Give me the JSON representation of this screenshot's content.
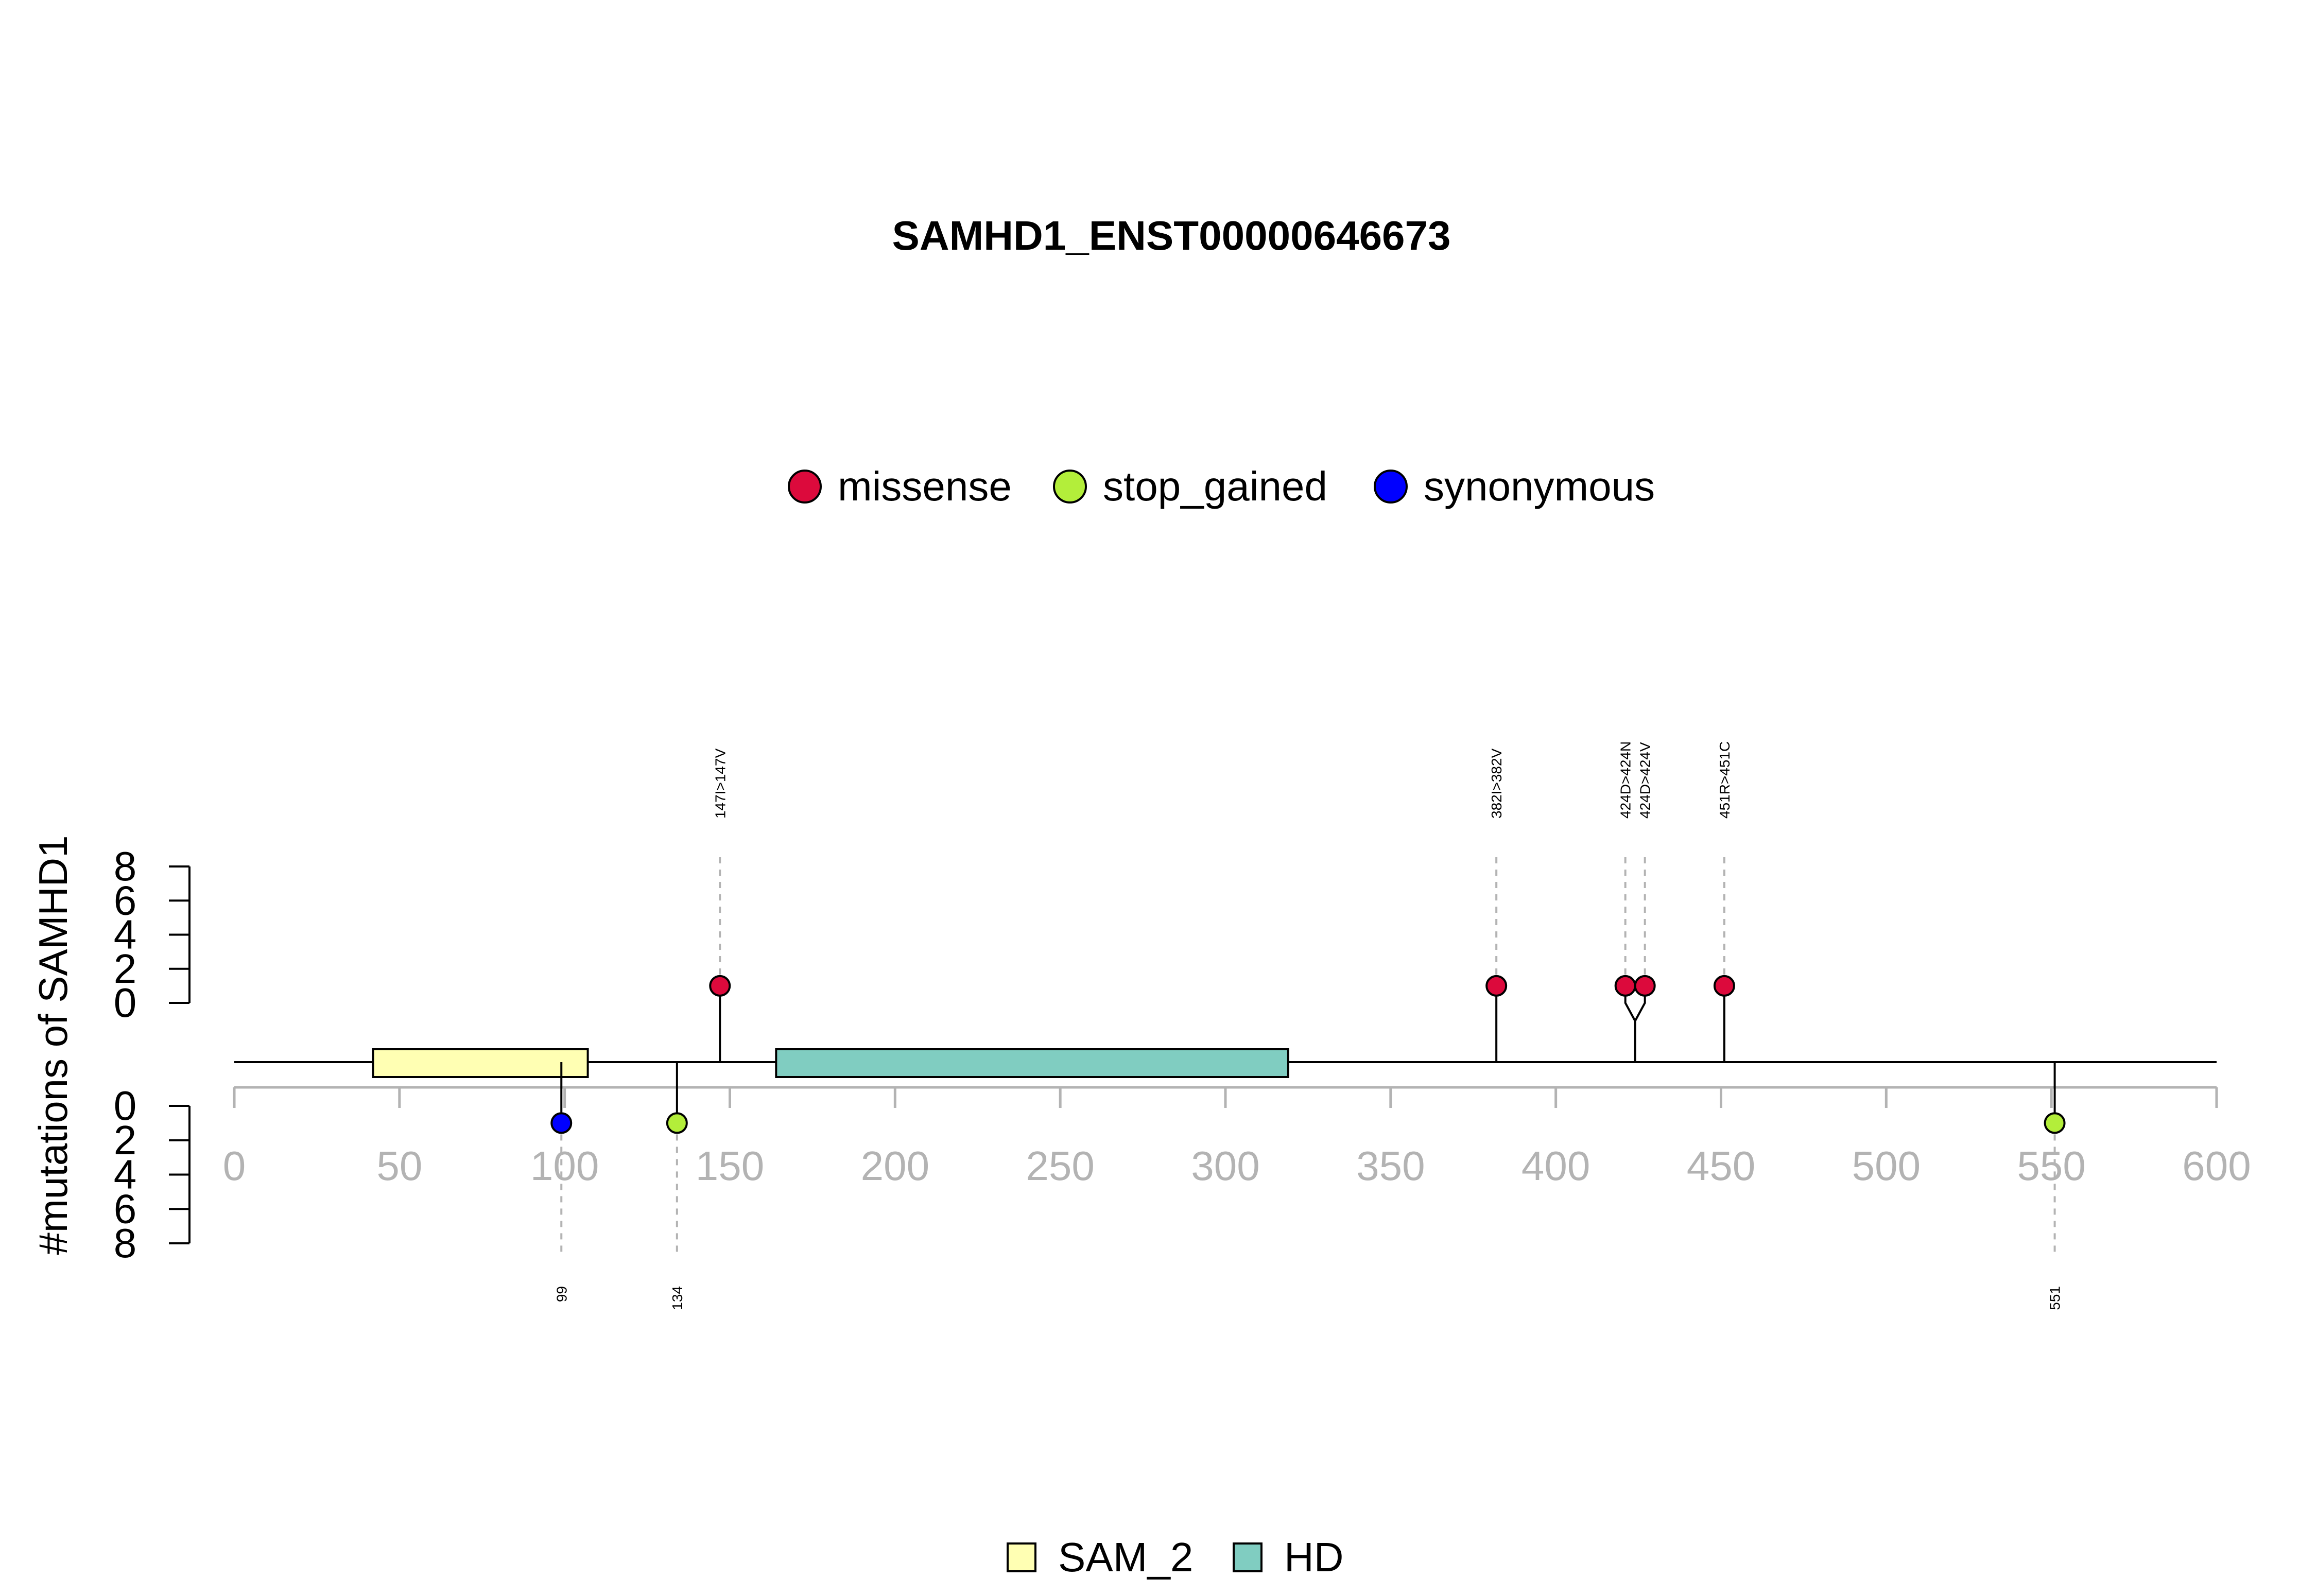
{
  "chart_data": {
    "type": "lollipop",
    "title": "SAMHD1_ENST00000646673",
    "ylabel": "#mutations of SAMHD1",
    "xlim": [
      0,
      600
    ],
    "x_ticks": [
      0,
      50,
      100,
      150,
      200,
      250,
      300,
      350,
      400,
      450,
      500,
      550,
      600
    ],
    "y_ticks": [
      0,
      2,
      4,
      6,
      8
    ],
    "ylim": [
      0,
      8
    ],
    "mutation_legend": [
      {
        "label": "missense",
        "color": "#DC0A3C"
      },
      {
        "label": "stop_gained",
        "color": "#B3EE3A"
      },
      {
        "label": "synonymous",
        "color": "#0000FF"
      }
    ],
    "domain_legend": [
      {
        "label": "SAM_2",
        "color": "#FFFFB3"
      },
      {
        "label": "HD",
        "color": "#80CDC1"
      }
    ],
    "domains": [
      {
        "name": "SAM_2",
        "start": 42,
        "end": 107,
        "color": "#FFFFB3"
      },
      {
        "name": "HD",
        "start": 164,
        "end": 319,
        "color": "#80CDC1"
      }
    ],
    "mutations_above": [
      {
        "position": 147,
        "label": "147I>147V",
        "count": 1,
        "type": "missense"
      },
      {
        "position": 382,
        "label": "382I>382V",
        "count": 1,
        "type": "missense"
      },
      {
        "position": 424,
        "label": "424D>424N",
        "count": 1,
        "type": "missense"
      },
      {
        "position": 424,
        "label": "424D>424V",
        "count": 1,
        "type": "missense"
      },
      {
        "position": 451,
        "label": "451R>451C",
        "count": 1,
        "type": "missense"
      }
    ],
    "mutations_below": [
      {
        "position": 99,
        "label": "99",
        "count": 1,
        "type": "synonymous"
      },
      {
        "position": 134,
        "label": "134",
        "count": 1,
        "type": "stop_gained"
      },
      {
        "position": 551,
        "label": "551",
        "count": 1,
        "type": "stop_gained"
      }
    ]
  }
}
